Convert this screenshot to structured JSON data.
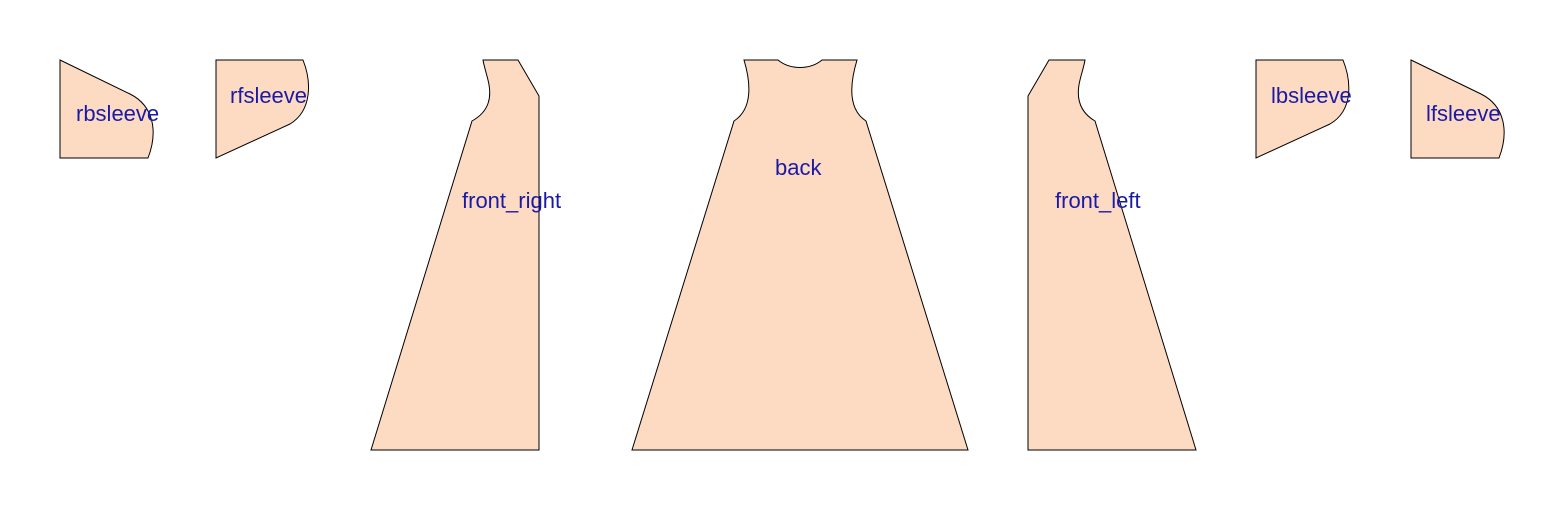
{
  "colors": {
    "piece_fill": "#fddbc3",
    "piece_stroke": "#000000",
    "label_color": "#1a1aa6",
    "background": "#ffffff"
  },
  "pieces": {
    "rbsleeve": {
      "label": "rbsleeve"
    },
    "rfsleeve": {
      "label": "rfsleeve"
    },
    "front_right": {
      "label": "front_right"
    },
    "back": {
      "label": "back"
    },
    "front_left": {
      "label": "front_left"
    },
    "lbsleeve": {
      "label": "lbsleeve"
    },
    "lfsleeve": {
      "label": "lfsleeve"
    }
  }
}
